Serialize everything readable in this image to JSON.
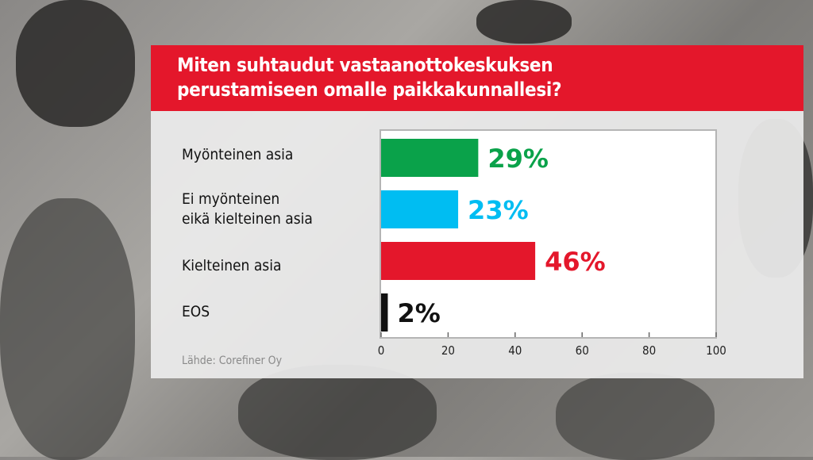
{
  "chart_data": {
    "type": "bar",
    "orientation": "horizontal",
    "title": "Miten suhtaudut vastaanottokeskuksen\nperustamiseen omalle paikkakunnallesi?",
    "categories": [
      "Myönteinen asia",
      "Ei myönteinen\neikä kielteinen asia",
      "Kielteinen asia",
      "EOS"
    ],
    "values": [
      29,
      23,
      46,
      2
    ],
    "value_labels": [
      "29%",
      "23%",
      "46%",
      "2%"
    ],
    "colors": [
      "#0aa24a",
      "#00bdf2",
      "#e4172b",
      "#111111"
    ],
    "xlim": [
      0,
      100
    ],
    "xticks": [
      "0",
      "20",
      "40",
      "60",
      "80",
      "100"
    ],
    "xlabel": "",
    "ylabel": "",
    "grid": false,
    "source": "Lähde: Corefiner Oy"
  }
}
